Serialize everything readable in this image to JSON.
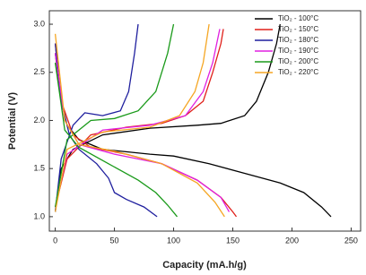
{
  "chart_data": {
    "type": "line",
    "xlabel": "Capacity (mA.h/g)",
    "ylabel": "Potential (V)",
    "xlim": [
      -5,
      258
    ],
    "ylim": [
      0.85,
      3.14
    ],
    "xticks": [
      0,
      50,
      100,
      150,
      200,
      250
    ],
    "yticks": [
      {
        "value": 1,
        "label": "1.0"
      },
      {
        "value": 1.5,
        "label": "1.5"
      },
      {
        "value": 2,
        "label": "2.0"
      },
      {
        "value": 2.5,
        "label": "2.5"
      },
      {
        "value": 3,
        "label": "3.0"
      }
    ],
    "grid": false,
    "legend": "upper right",
    "series": [
      {
        "name": "TiO₂ - 100°C",
        "color": "#000000",
        "x": [
          0,
          5,
          10,
          20,
          40,
          80,
          100,
          130,
          160,
          190,
          210,
          225,
          233,
          null,
          0,
          5,
          15,
          40,
          80,
          120,
          140,
          160,
          170,
          180,
          187,
          190
        ],
        "values": [
          2.7,
          2.2,
          1.95,
          1.8,
          1.7,
          1.65,
          1.63,
          1.55,
          1.45,
          1.35,
          1.25,
          1.1,
          1.0,
          null,
          1.05,
          1.5,
          1.7,
          1.85,
          1.92,
          1.95,
          1.97,
          2.05,
          2.2,
          2.5,
          2.8,
          3.0
        ]
      },
      {
        "name": "TiO₂ - 150°C",
        "color": "#e0201a",
        "x": [
          0,
          5,
          15,
          30,
          60,
          90,
          120,
          140,
          150,
          153,
          null,
          0,
          10,
          30,
          60,
          90,
          110,
          125,
          133,
          140,
          142
        ],
        "values": [
          2.8,
          2.2,
          1.85,
          1.72,
          1.65,
          1.55,
          1.38,
          1.2,
          1.05,
          1.0,
          null,
          1.1,
          1.6,
          1.85,
          1.93,
          1.97,
          2.05,
          2.2,
          2.5,
          2.8,
          2.95
        ]
      },
      {
        "name": "TiO₂ - 180°C",
        "color": "#1f1f9e",
        "x": [
          0,
          5,
          12,
          20,
          35,
          45,
          50,
          60,
          75,
          86,
          null,
          0,
          5,
          15,
          25,
          40,
          55,
          62,
          67,
          70
        ],
        "values": [
          2.8,
          2.2,
          1.85,
          1.7,
          1.55,
          1.4,
          1.25,
          1.18,
          1.1,
          1.0,
          null,
          1.05,
          1.6,
          1.95,
          2.08,
          2.05,
          2.1,
          2.3,
          2.7,
          3.0
        ]
      },
      {
        "name": "TiO₂ - 190°C",
        "color": "#e020e0",
        "x": [
          0,
          8,
          20,
          50,
          90,
          120,
          140,
          147,
          null,
          0,
          10,
          40,
          80,
          110,
          125,
          133,
          139
        ],
        "values": [
          2.7,
          2.0,
          1.75,
          1.65,
          1.55,
          1.38,
          1.2,
          1.05,
          null,
          1.1,
          1.65,
          1.9,
          1.95,
          2.05,
          2.3,
          2.6,
          2.95
        ]
      },
      {
        "name": "TiO₂ - 200°C",
        "color": "#1a9a1a",
        "x": [
          0,
          8,
          20,
          45,
          70,
          85,
          95,
          103,
          null,
          0,
          10,
          30,
          50,
          70,
          85,
          95,
          100
        ],
        "values": [
          2.6,
          1.9,
          1.72,
          1.55,
          1.38,
          1.25,
          1.12,
          1.0,
          null,
          1.1,
          1.8,
          2.0,
          2.02,
          2.1,
          2.3,
          2.7,
          3.0
        ]
      },
      {
        "name": "TiO₂ - 220°C",
        "color": "#f5a623",
        "x": [
          0,
          8,
          20,
          50,
          90,
          120,
          135,
          143,
          null,
          0,
          10,
          40,
          80,
          105,
          118,
          125,
          130
        ],
        "values": [
          2.9,
          2.0,
          1.75,
          1.68,
          1.55,
          1.35,
          1.15,
          1.0,
          null,
          1.05,
          1.7,
          1.88,
          1.93,
          2.05,
          2.3,
          2.6,
          3.0
        ]
      }
    ]
  }
}
